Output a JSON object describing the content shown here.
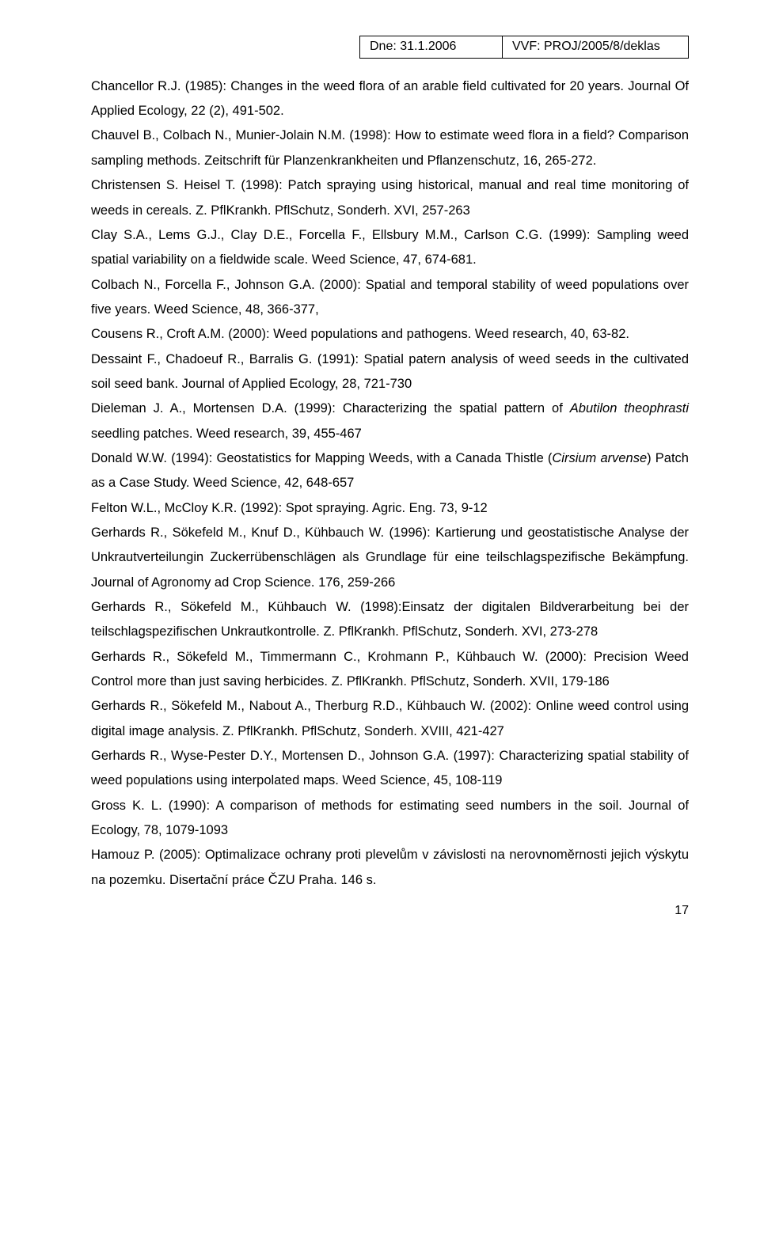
{
  "header": {
    "date_label": "Dne: 31.1.2006",
    "project_code": "VVF: PROJ/2005/8/deklas"
  },
  "refs": {
    "r1": "Chancellor R.J. (1985): Changes in the weed flora of an arable field cultivated for 20 years. Journal Of Applied Ecology, 22 (2), 491-502.",
    "r2": "Chauvel B., Colbach N., Munier-Jolain N.M. (1998): How to estimate weed flora in a field? Comparison sampling methods. Zeitschrift für Planzenkrankheiten und Pflanzenschutz, 16, 265-272.",
    "r3": "Christensen S. Heisel T. (1998): Patch spraying using historical, manual and real time monitoring of weeds in cereals. Z. PflKrankh. PflSchutz, Sonderh. XVI, 257-263",
    "r4": "Clay S.A., Lems G.J., Clay D.E., Forcella F., Ellsbury M.M., Carlson C.G. (1999): Sampling weed spatial variability on a fieldwide scale. Weed Science, 47, 674-681.",
    "r5": "Colbach N., Forcella F., Johnson G.A. (2000): Spatial and temporal stability of weed populations over five years. Weed Science, 48, 366-377,",
    "r6": "Cousens R., Croft A.M. (2000): Weed populations and pathogens. Weed research, 40, 63-82.",
    "r7": "Dessaint F., Chadoeuf R., Barralis G. (1991): Spatial patern analysis of weed seeds in the cultivated soil seed bank. Journal of Applied Ecology, 28, 721-730",
    "r8a": "Dieleman J. A., Mortensen D.A. (1999): Characterizing the spatial pattern of ",
    "r8b": "Abutilon theophrasti",
    "r8c": " seedling patches. Weed research, 39, 455-467",
    "r9a": " Donald W.W. (1994): Geostatistics for Mapping Weeds, with a Canada Thistle (",
    "r9b": "Cirsium arvense",
    "r9c": ") Patch as a Case Study. Weed Science, 42, 648-657",
    "r10": "Felton W.L., McCloy K.R. (1992): Spot spraying. Agric. Eng. 73, 9-12",
    "r11": "Gerhards R., Sökefeld M., Knuf D., Kühbauch W. (1996): Kartierung und geostatistische Analyse der Unkrautverteilungin Zuckerrübenschlägen als Grundlage für eine teilschlagspezifische Bekämpfung. Journal of Agronomy ad Crop Science. 176, 259-266",
    "r12": " Gerhards R., Sökefeld M., Kühbauch W. (1998):Einsatz der digitalen Bildverarbeitung bei der teilschlagspezifischen Unkrautkontrolle. Z. PflKrankh. PflSchutz, Sonderh. XVI, 273-278",
    "r13": "Gerhards R., Sökefeld M., Timmermann C., Krohmann P., Kühbauch W. (2000): Precision Weed Control more than just saving herbicides. Z. PflKrankh. PflSchutz, Sonderh. XVII, 179-186",
    "r14": "Gerhards R., Sökefeld M., Nabout A., Therburg R.D., Kühbauch W. (2002): Online weed control using digital image analysis. Z. PflKrankh. PflSchutz, Sonderh. XVIII, 421-427",
    "r15": "Gerhards R., Wyse-Pester D.Y., Mortensen D., Johnson G.A. (1997): Characterizing spatial stability of weed populations using interpolated maps. Weed Science, 45, 108-119",
    "r16": "Gross K. L. (1990): A comparison of methods for estimating seed numbers in the soil. Journal of Ecology, 78, 1079-1093",
    "r17": "Hamouz P. (2005): Optimalizace ochrany proti plevelům v závislosti na  nerovnoměrnosti jejich výskytu na pozemku. Disertační práce ČZU Praha. 146 s."
  },
  "page_number": "17"
}
